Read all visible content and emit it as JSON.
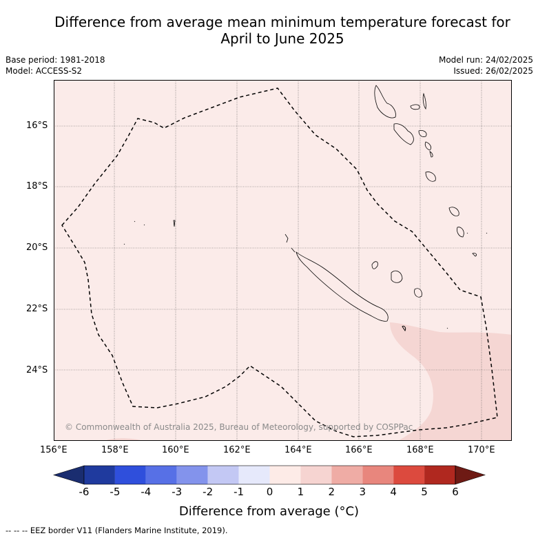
{
  "title_line1": "Difference from average mean minimum temperature forecast for",
  "title_line2": "April to June 2025",
  "base_period": "Base period: 1981-2018",
  "model": "Model: ACCESS-S2",
  "model_run": "Model run: 24/02/2025",
  "issued": "Issued: 26/02/2025",
  "lat_labels": [
    "16°S",
    "18°S",
    "20°S",
    "22°S",
    "24°S"
  ],
  "lon_labels": [
    "156°E",
    "158°E",
    "160°E",
    "162°E",
    "164°E",
    "166°E",
    "168°E",
    "170°E"
  ],
  "copyright": "© Commonwealth of Australia 2025, Bureau of Meteorology, supported by COSPPac",
  "colorbar": {
    "ticks": [
      "-6",
      "-5",
      "-4",
      "-3",
      "-2",
      "-1",
      "0",
      "1",
      "2",
      "3",
      "4",
      "5",
      "6"
    ],
    "colors": [
      "#1f3a9e",
      "#2f4fdc",
      "#5770e6",
      "#8393ec",
      "#c3c8f4",
      "#e6e9fb",
      "#fdebe7",
      "#f6d4d1",
      "#efaca5",
      "#e8867d",
      "#dc4a3e",
      "#b0281f"
    ],
    "low_color": "#1a2d70",
    "high_color": "#6e1a14",
    "label": "Difference from average (°C)"
  },
  "legend_note": "--  --  -- EEZ border V11 (Flanders Marine Institute, 2019).",
  "colors": {
    "map_bg": "#fbebe9",
    "warm_region": "#f5d6d3"
  }
}
